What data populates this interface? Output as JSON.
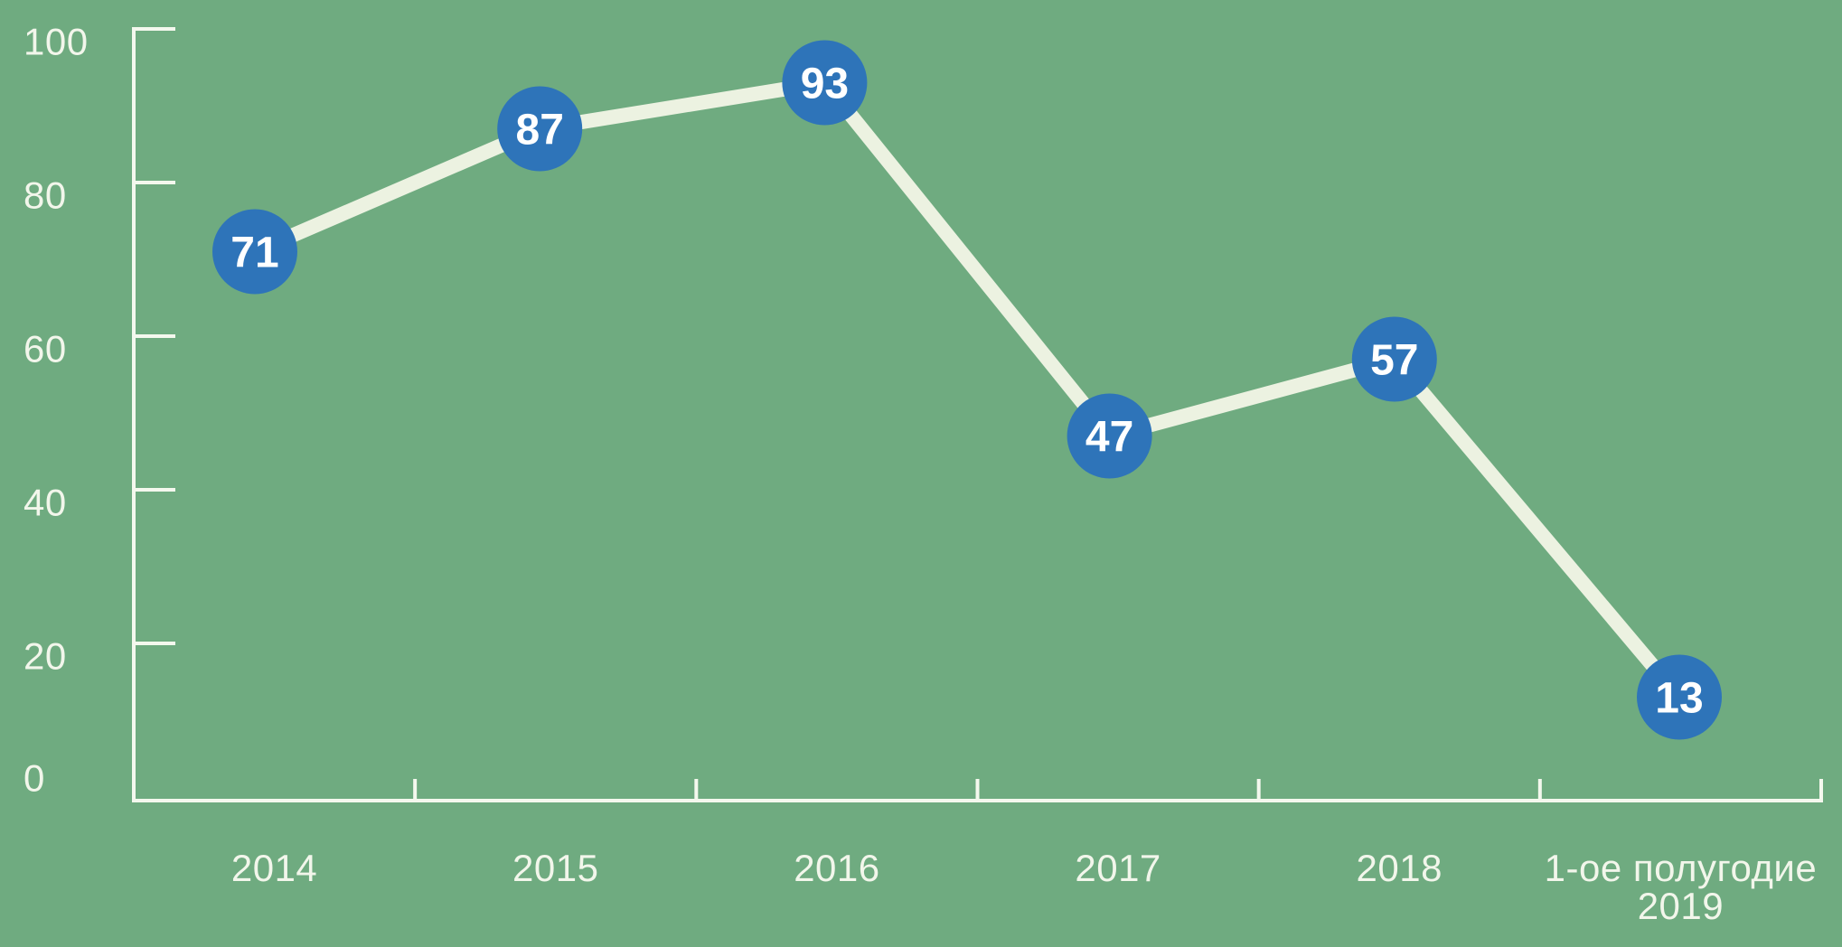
{
  "chart_data": {
    "type": "line",
    "categories": [
      "2014",
      "2015",
      "2016",
      "2017",
      "2018",
      "1-ое полугодие\n2019"
    ],
    "values": [
      71,
      87,
      93,
      47,
      57,
      13
    ],
    "title": "",
    "xlabel": "",
    "ylabel": "",
    "ylim": [
      0,
      100
    ],
    "yticks": [
      0,
      20,
      40,
      60,
      80,
      100
    ],
    "grid": false,
    "legend": "none",
    "point_labels_shown": true,
    "axis_tick_style": "inward",
    "colors": {
      "background": "#6FAB80",
      "axis": "#F4F8EE",
      "tick_label": "#F2F6EB",
      "line": "#ECF2E1",
      "point_fill": "#2E74B9",
      "point_text": "#FFFFFF"
    }
  }
}
